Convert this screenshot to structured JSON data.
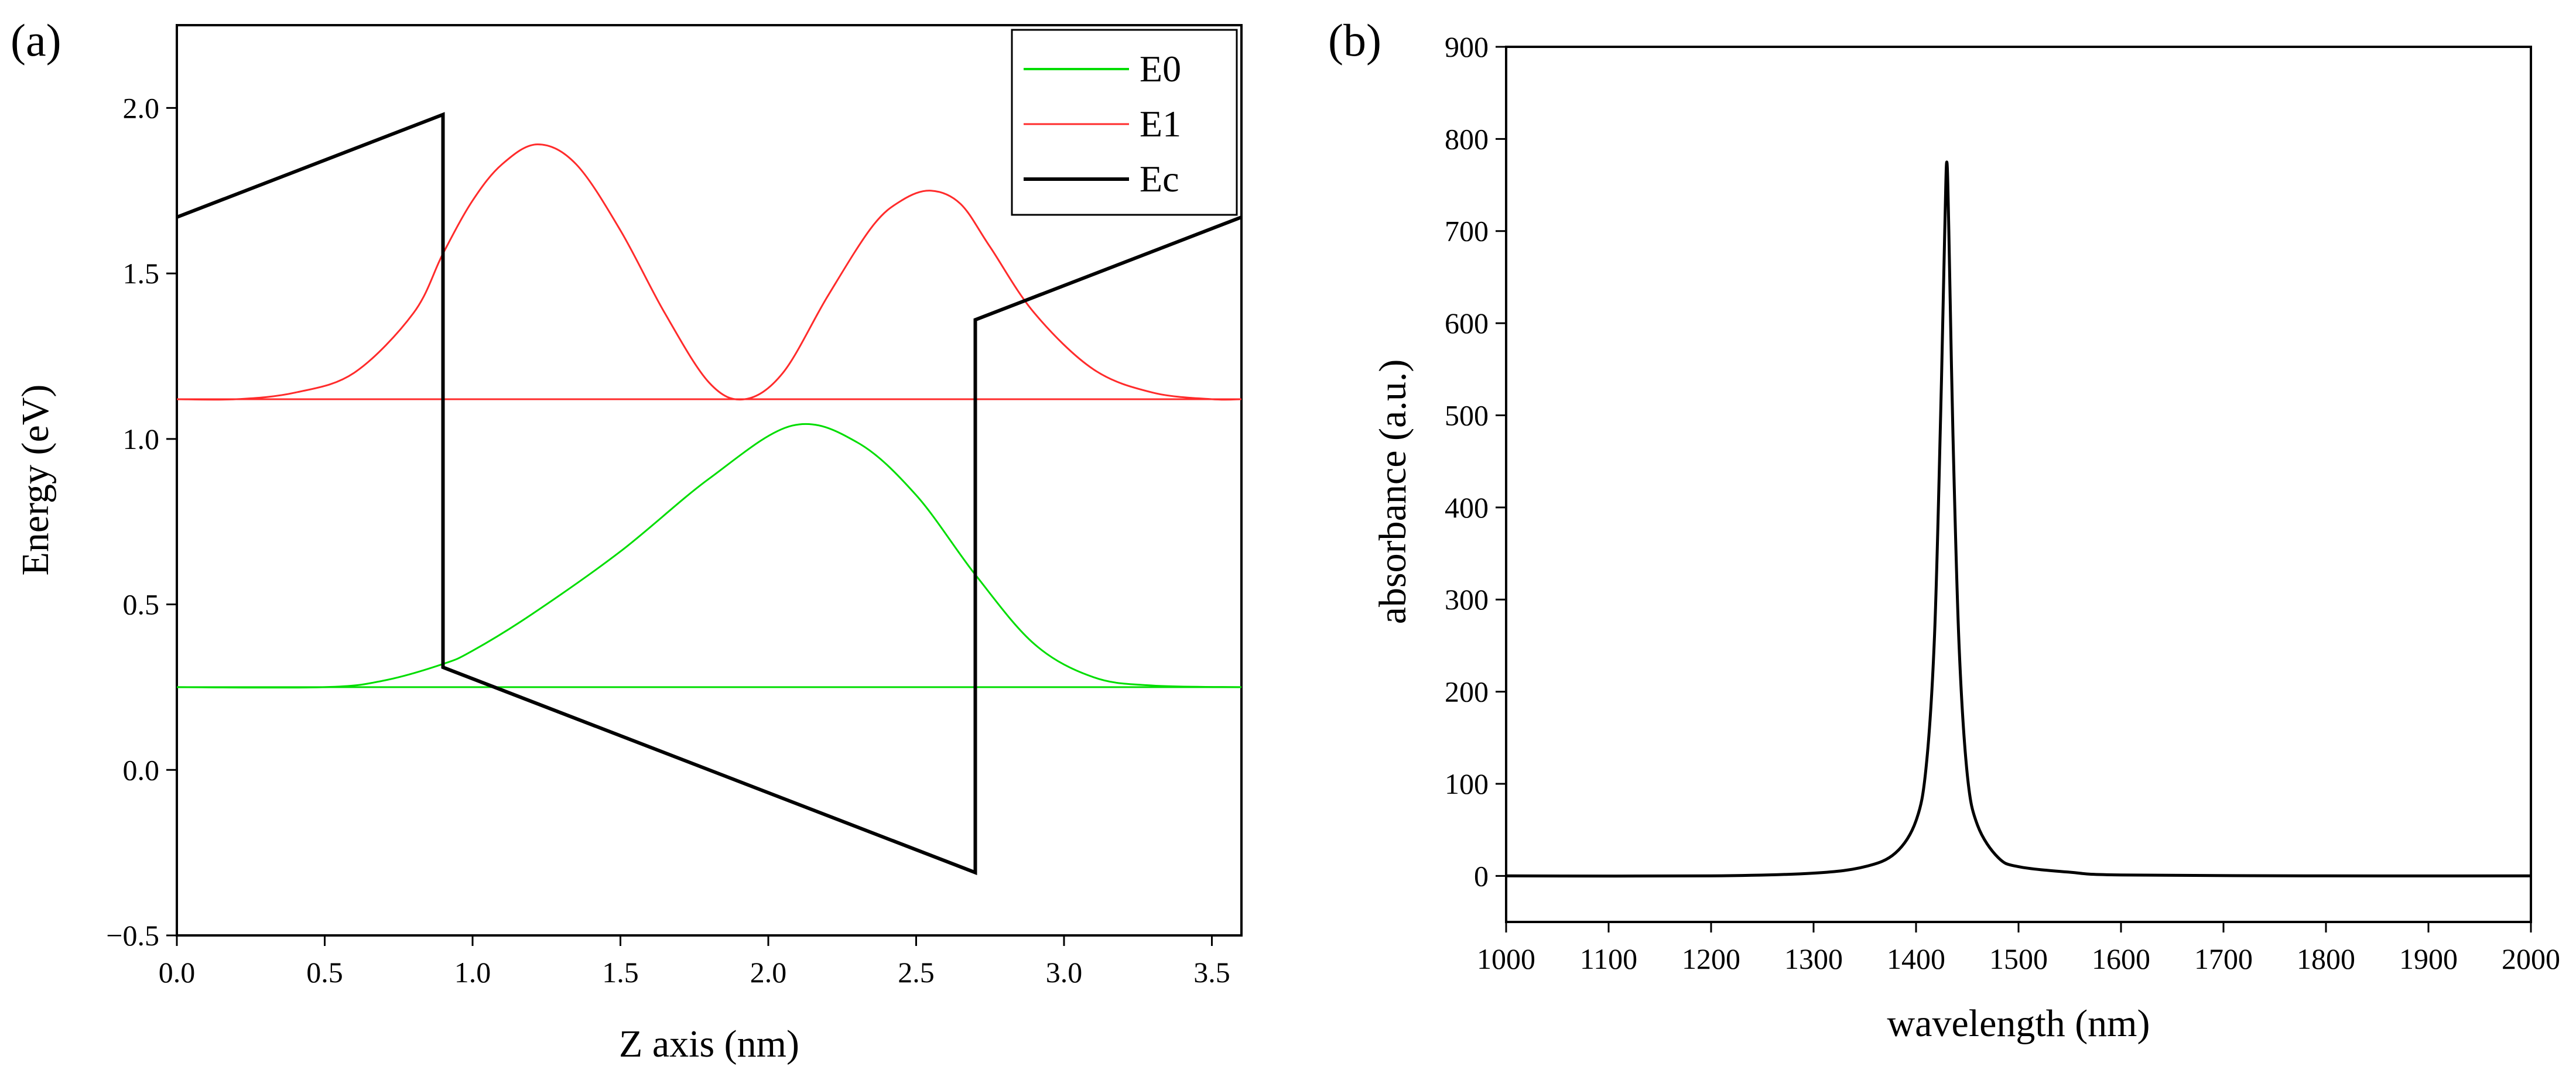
{
  "chart_data": [
    {
      "panel": "(a)",
      "type": "line",
      "xlabel": "Z axis (nm)",
      "ylabel": "Energy (eV)",
      "xlim": [
        0.0,
        3.6
      ],
      "ylim": [
        -0.5,
        2.25
      ],
      "x_ticks": [
        0.0,
        0.5,
        1.0,
        1.5,
        2.0,
        2.5,
        3.0,
        3.5
      ],
      "x_tick_labels": [
        "0.0",
        "0.5",
        "1.0",
        "1.5",
        "2.0",
        "2.5",
        "3.0",
        "3.5"
      ],
      "y_ticks": [
        -0.5,
        0.0,
        0.5,
        1.0,
        1.5,
        2.0
      ],
      "y_tick_labels": [
        "−0.5",
        "0.0",
        "0.5",
        "1.0",
        "1.5",
        "2.0"
      ],
      "legend": {
        "position": "top-right",
        "entries": [
          "E0",
          "E1",
          "Ec"
        ]
      },
      "series": [
        {
          "name": "E0",
          "color": "#00dd00",
          "level": 0.25,
          "x": [
            0.0,
            0.5,
            0.7,
            0.9,
            1.0,
            1.2,
            1.5,
            1.8,
            2.08,
            2.3,
            2.5,
            2.7,
            2.9,
            3.1,
            3.3,
            3.6
          ],
          "y": [
            0.25,
            0.25,
            0.27,
            0.32,
            0.36,
            0.47,
            0.66,
            0.88,
            1.04,
            0.99,
            0.83,
            0.59,
            0.38,
            0.28,
            0.255,
            0.25
          ]
        },
        {
          "name": "E1",
          "color": "#ff2b2b",
          "level": 1.12,
          "x": [
            0.0,
            0.2,
            0.4,
            0.6,
            0.8,
            0.9,
            1.0,
            1.1,
            1.22,
            1.35,
            1.5,
            1.65,
            1.8,
            1.92,
            2.05,
            2.2,
            2.35,
            2.45,
            2.55,
            2.65,
            2.75,
            2.9,
            3.1,
            3.3,
            3.5,
            3.6
          ],
          "y": [
            1.12,
            1.12,
            1.14,
            1.2,
            1.38,
            1.56,
            1.72,
            1.83,
            1.89,
            1.83,
            1.63,
            1.38,
            1.17,
            1.12,
            1.2,
            1.43,
            1.64,
            1.72,
            1.75,
            1.71,
            1.58,
            1.38,
            1.21,
            1.14,
            1.12,
            1.12
          ]
        },
        {
          "name": "Ec",
          "color": "#000000",
          "x": [
            0.0,
            0.9,
            0.9,
            2.7,
            2.7,
            3.6
          ],
          "y": [
            1.67,
            1.98,
            0.31,
            -0.31,
            1.36,
            1.67
          ]
        }
      ]
    },
    {
      "panel": "(b)",
      "type": "line",
      "xlabel": "wavelength (nm)",
      "ylabel": "absorbance (a.u.)",
      "xlim": [
        1000,
        2000
      ],
      "ylim": [
        -50,
        900
      ],
      "x_ticks": [
        1000,
        1100,
        1200,
        1300,
        1400,
        1500,
        1600,
        1700,
        1800,
        1900,
        2000
      ],
      "x_tick_labels": [
        "1000",
        "1100",
        "1200",
        "1300",
        "1400",
        "1500",
        "1600",
        "1700",
        "1800",
        "1900",
        "2000"
      ],
      "y_ticks": [
        0,
        100,
        200,
        300,
        400,
        500,
        600,
        700,
        800,
        900
      ],
      "y_tick_labels": [
        "0",
        "100",
        "200",
        "300",
        "400",
        "500",
        "600",
        "700",
        "800",
        "900"
      ],
      "series": [
        {
          "name": "absorbance",
          "color": "#000000",
          "peak_wavelength": 1430,
          "peak_value": 775,
          "x": [
            1000,
            1200,
            1300,
            1350,
            1380,
            1400,
            1410,
            1418,
            1424,
            1428,
            1430,
            1432,
            1436,
            1442,
            1450,
            1460,
            1480,
            1500,
            1550,
            1600,
            1800,
            2000
          ],
          "y": [
            0,
            0,
            3,
            10,
            25,
            60,
            120,
            260,
            500,
            700,
            775,
            700,
            480,
            250,
            110,
            55,
            20,
            10,
            4,
            1,
            0,
            0
          ]
        }
      ]
    }
  ]
}
